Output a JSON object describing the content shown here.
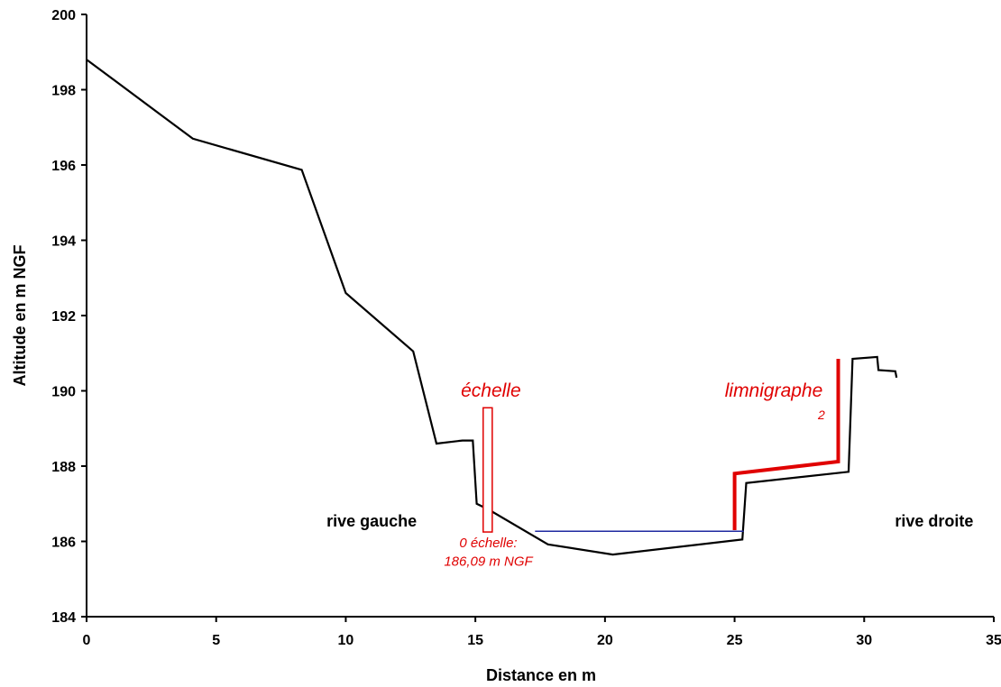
{
  "chart_data": {
    "type": "line",
    "title": "",
    "xlabel": "Distance en m",
    "ylabel": "Altitude en m NGF",
    "xlim": [
      0,
      35
    ],
    "ylim": [
      184,
      200
    ],
    "x_ticks": [
      0,
      5,
      10,
      15,
      20,
      25,
      30,
      35
    ],
    "y_ticks": [
      184,
      186,
      188,
      190,
      192,
      194,
      196,
      198,
      200
    ],
    "grid": false,
    "legend": "none",
    "series": [
      {
        "color": "#000000",
        "points": [
          [
            0,
            198.8
          ],
          [
            4.1,
            196.7
          ],
          [
            8.3,
            195.87
          ],
          [
            10.0,
            192.6
          ],
          [
            12.6,
            191.05
          ],
          [
            13.5,
            188.6
          ],
          [
            14.5,
            188.68
          ],
          [
            14.9,
            188.68
          ],
          [
            15.05,
            187.0
          ],
          [
            15.5,
            186.85
          ],
          [
            17.8,
            185.92
          ],
          [
            20.3,
            185.65
          ],
          [
            25.3,
            186.05
          ],
          [
            25.45,
            187.55
          ],
          [
            29.4,
            187.85
          ],
          [
            29.55,
            190.85
          ],
          [
            30.5,
            190.9
          ],
          [
            30.55,
            190.55
          ],
          [
            31.2,
            190.52
          ],
          [
            31.25,
            190.35
          ]
        ]
      },
      {
        "color": "#e00000",
        "points": [
          [
            25.0,
            186.3
          ],
          [
            25.0,
            187.8
          ],
          [
            29.0,
            188.12
          ],
          [
            29.0,
            190.85
          ]
        ]
      },
      {
        "color": "#1f2aa0",
        "points": [
          [
            17.3,
            186.27
          ],
          [
            25.35,
            186.27
          ]
        ]
      }
    ],
    "gauge_marker": {
      "x0": 15.3,
      "x1": 15.65,
      "y0": 186.25,
      "y1": 189.55,
      "color": "#e00000"
    },
    "annotations": {
      "echelle": {
        "text": "échelle",
        "x": 15.6,
        "y": 189.85
      },
      "limnigraphe": {
        "text": "limnigraphe",
        "x": 28.4,
        "y": 189.85
      },
      "limnigraphe_fragment": {
        "text": "2",
        "x": 28.35,
        "y": 189.25
      },
      "zero_line1": {
        "text": "0 échelle:",
        "x": 15.5,
        "y": 185.85
      },
      "zero_line2": {
        "text": "186,09 m NGF",
        "x": 15.5,
        "y": 185.35
      },
      "rive_gauche": {
        "text": "rive gauche",
        "x": 11.0,
        "y": 186.4
      },
      "rive_droite": {
        "text": "rive droite",
        "x": 32.7,
        "y": 186.4
      }
    }
  }
}
